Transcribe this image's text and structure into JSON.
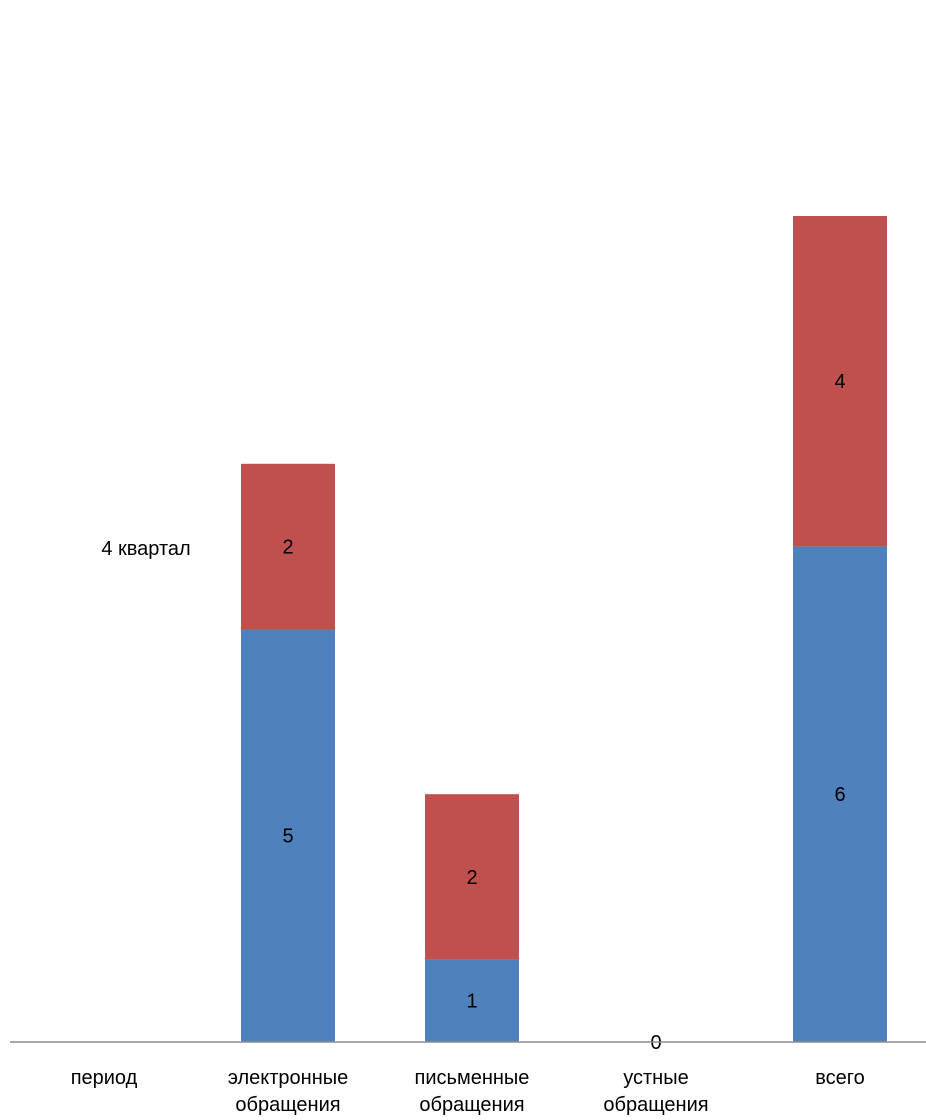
{
  "chart_data": {
    "type": "bar",
    "stacked": true,
    "categories": [
      "период",
      "электронные обращения",
      "письменные обращения",
      "устные обращения",
      "всего"
    ],
    "category_lines": [
      [
        "период"
      ],
      [
        "электронные",
        "обращения"
      ],
      [
        "письменные",
        "обращения"
      ],
      [
        "устные",
        "обращения"
      ],
      [
        "всего"
      ]
    ],
    "series": [
      {
        "color": "#4F81BD",
        "values": [
          null,
          5,
          1,
          0,
          6
        ]
      },
      {
        "color": "#C0504D",
        "values": [
          null,
          2,
          2,
          null,
          4
        ]
      }
    ],
    "ylim": [
      0,
      10
    ],
    "grid": false,
    "annotations": [
      {
        "text": "4 квартал",
        "category": "период"
      }
    ],
    "colors": {
      "axis": "#8C8C8C"
    }
  }
}
